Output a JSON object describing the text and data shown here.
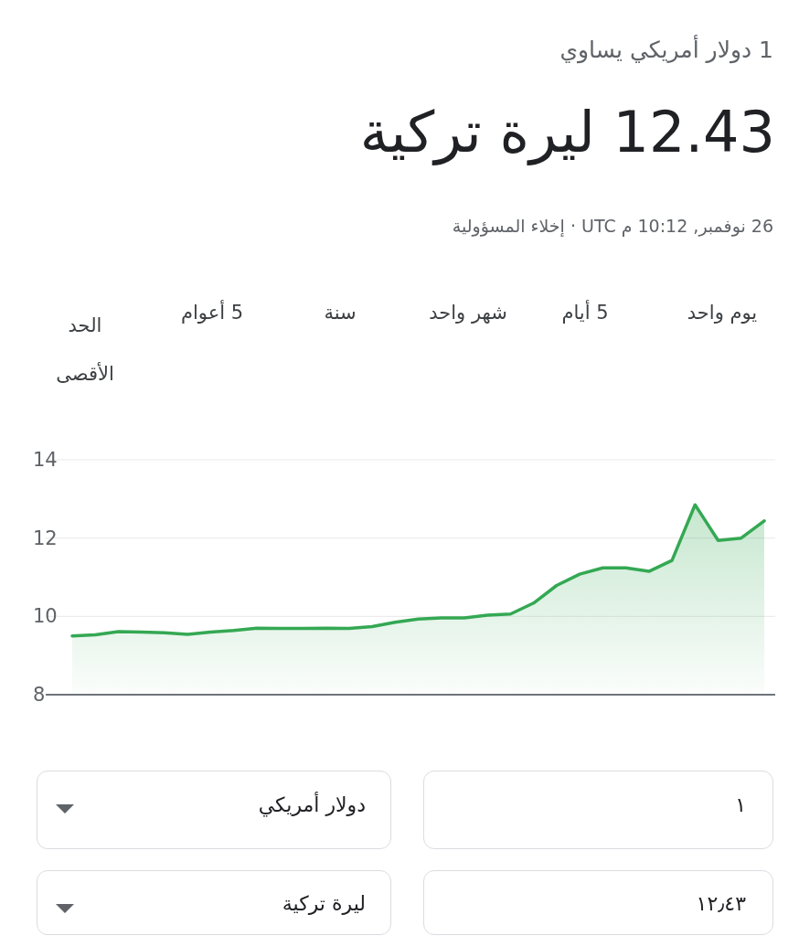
{
  "chart_data": {
    "type": "area",
    "title": "1 دولار أمريكي يساوي",
    "subtitle": "12.43 ليرة تركية",
    "annotations": [
      "26 نوفمبر, 10:12 م UTC · إخلاء المسؤولية",
      "يوم واحد",
      "5 أيام",
      "شهر واحد",
      "سنة",
      "5 أعوام",
      "الحد الأقصى",
      "١",
      "دولار أمريكي",
      "١٢٫٤٣",
      "ليرة تركية"
    ],
    "categories": [
      null,
      null,
      null,
      null,
      null,
      null,
      null,
      null,
      null,
      null,
      null,
      null,
      null,
      null,
      null,
      null,
      null,
      null,
      null,
      null,
      null,
      null,
      null,
      null,
      null,
      null,
      null,
      null,
      null,
      null,
      null
    ],
    "series": [
      {
        "color": "#34a853",
        "values": [
          9.5,
          9.53,
          9.61,
          9.6,
          9.58,
          9.54,
          9.6,
          9.64,
          9.7,
          9.69,
          9.69,
          9.7,
          9.69,
          9.74,
          9.85,
          9.93,
          9.96,
          9.96,
          10.03,
          10.06,
          10.34,
          10.79,
          11.08,
          11.24,
          11.24,
          11.15,
          11.43,
          12.85,
          11.94,
          12.0,
          12.44
        ]
      }
    ],
    "ylim": [
      8,
      14
    ],
    "yticks": [
      8,
      10,
      12,
      14
    ],
    "grid": "y",
    "tick_labels": "y"
  }
}
